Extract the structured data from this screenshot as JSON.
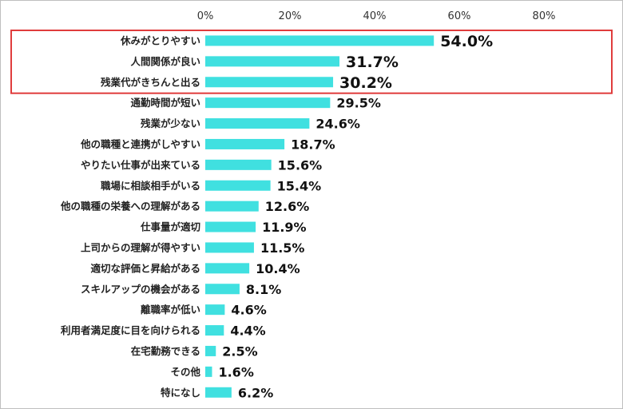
{
  "chart_data": {
    "type": "bar",
    "orientation": "horizontal",
    "categories": [
      "休みがとりやすい",
      "人間関係が良い",
      "残業代がきちんと出る",
      "通勤時間が短い",
      "残業が少ない",
      "他の職種と連携がしやすい",
      "やりたい仕事が出来ている",
      "職場に相談相手がいる",
      "他の職種の栄養への理解がある",
      "仕事量が適切",
      "上司からの理解が得やすい",
      "適切な評価と昇給がある",
      "スキルアップの機会がある",
      "離職率が低い",
      "利用者満足度に目を向けられる",
      "在宅勤務できる",
      "その他",
      "特になし"
    ],
    "values": [
      54.0,
      31.7,
      30.2,
      29.5,
      24.6,
      18.7,
      15.6,
      15.4,
      12.6,
      11.9,
      11.5,
      10.4,
      8.1,
      4.6,
      4.4,
      2.5,
      1.6,
      6.2
    ],
    "value_labels": [
      "54.0%",
      "31.7%",
      "30.2%",
      "29.5%",
      "24.6%",
      "18.7%",
      "15.6%",
      "15.4%",
      "12.6%",
      "11.9%",
      "11.5%",
      "10.4%",
      "8.1%",
      "4.6%",
      "4.4%",
      "2.5%",
      "1.6%",
      "6.2%"
    ],
    "x_ticks": [
      "0%",
      "20%",
      "40%",
      "60%",
      "80%"
    ],
    "x_tick_values": [
      0,
      20,
      40,
      60,
      80
    ],
    "xlim": [
      0,
      80
    ],
    "highlight_count": 3,
    "grid": false,
    "legend": "none",
    "colors": {
      "bar": "#40e0e0",
      "highlight_box": "#e03c3c",
      "text": "#222222"
    }
  }
}
